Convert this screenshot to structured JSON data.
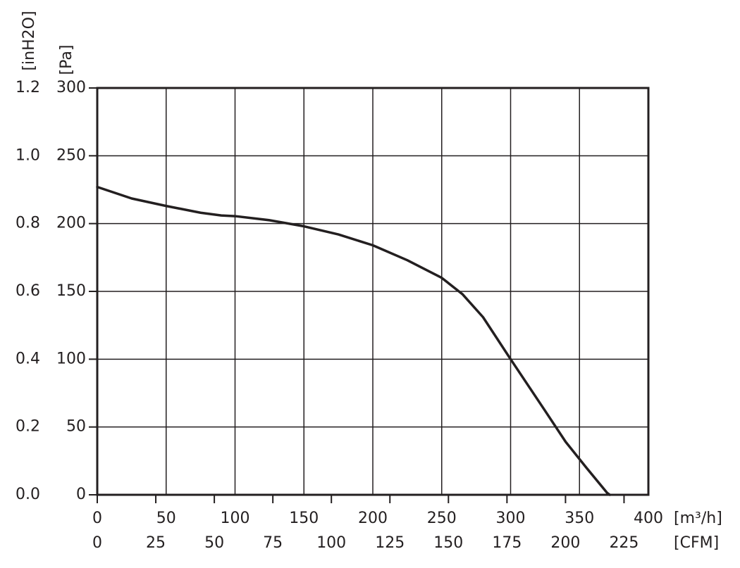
{
  "chart_data": {
    "type": "line",
    "x": [
      0,
      25,
      50,
      75,
      90,
      100,
      125,
      150,
      175,
      200,
      225,
      250,
      265,
      280,
      300,
      325,
      340,
      355,
      370,
      372
    ],
    "values": [
      227,
      218.5,
      213,
      208,
      206,
      205.5,
      202.5,
      198,
      192,
      184,
      173,
      160,
      148,
      131,
      100,
      62,
      39,
      20,
      1.5,
      0
    ],
    "color": "#231f20",
    "xlim": [
      0,
      400
    ],
    "xticks": [
      0,
      50,
      100,
      150,
      200,
      250,
      300,
      350,
      400
    ],
    "xlabel": "[m³/h]",
    "x2lim": [
      0,
      235.4
    ],
    "x2ticks": [
      0,
      25,
      50,
      75,
      100,
      125,
      150,
      175,
      200,
      225
    ],
    "x2label": "[CFM]",
    "ylim": [
      0,
      300
    ],
    "yticks": [
      0,
      50,
      100,
      150,
      200,
      250,
      300
    ],
    "ylabel": "[Pa]",
    "y2lim": [
      0,
      1.2
    ],
    "y2ticks": [
      {
        "value": 0,
        "label": "0.0"
      },
      0.2,
      0.4,
      0.6,
      0.8,
      {
        "value": 1,
        "label": "1.0"
      },
      1.2
    ],
    "y2label": "[inH2O]",
    "grid": true
  }
}
